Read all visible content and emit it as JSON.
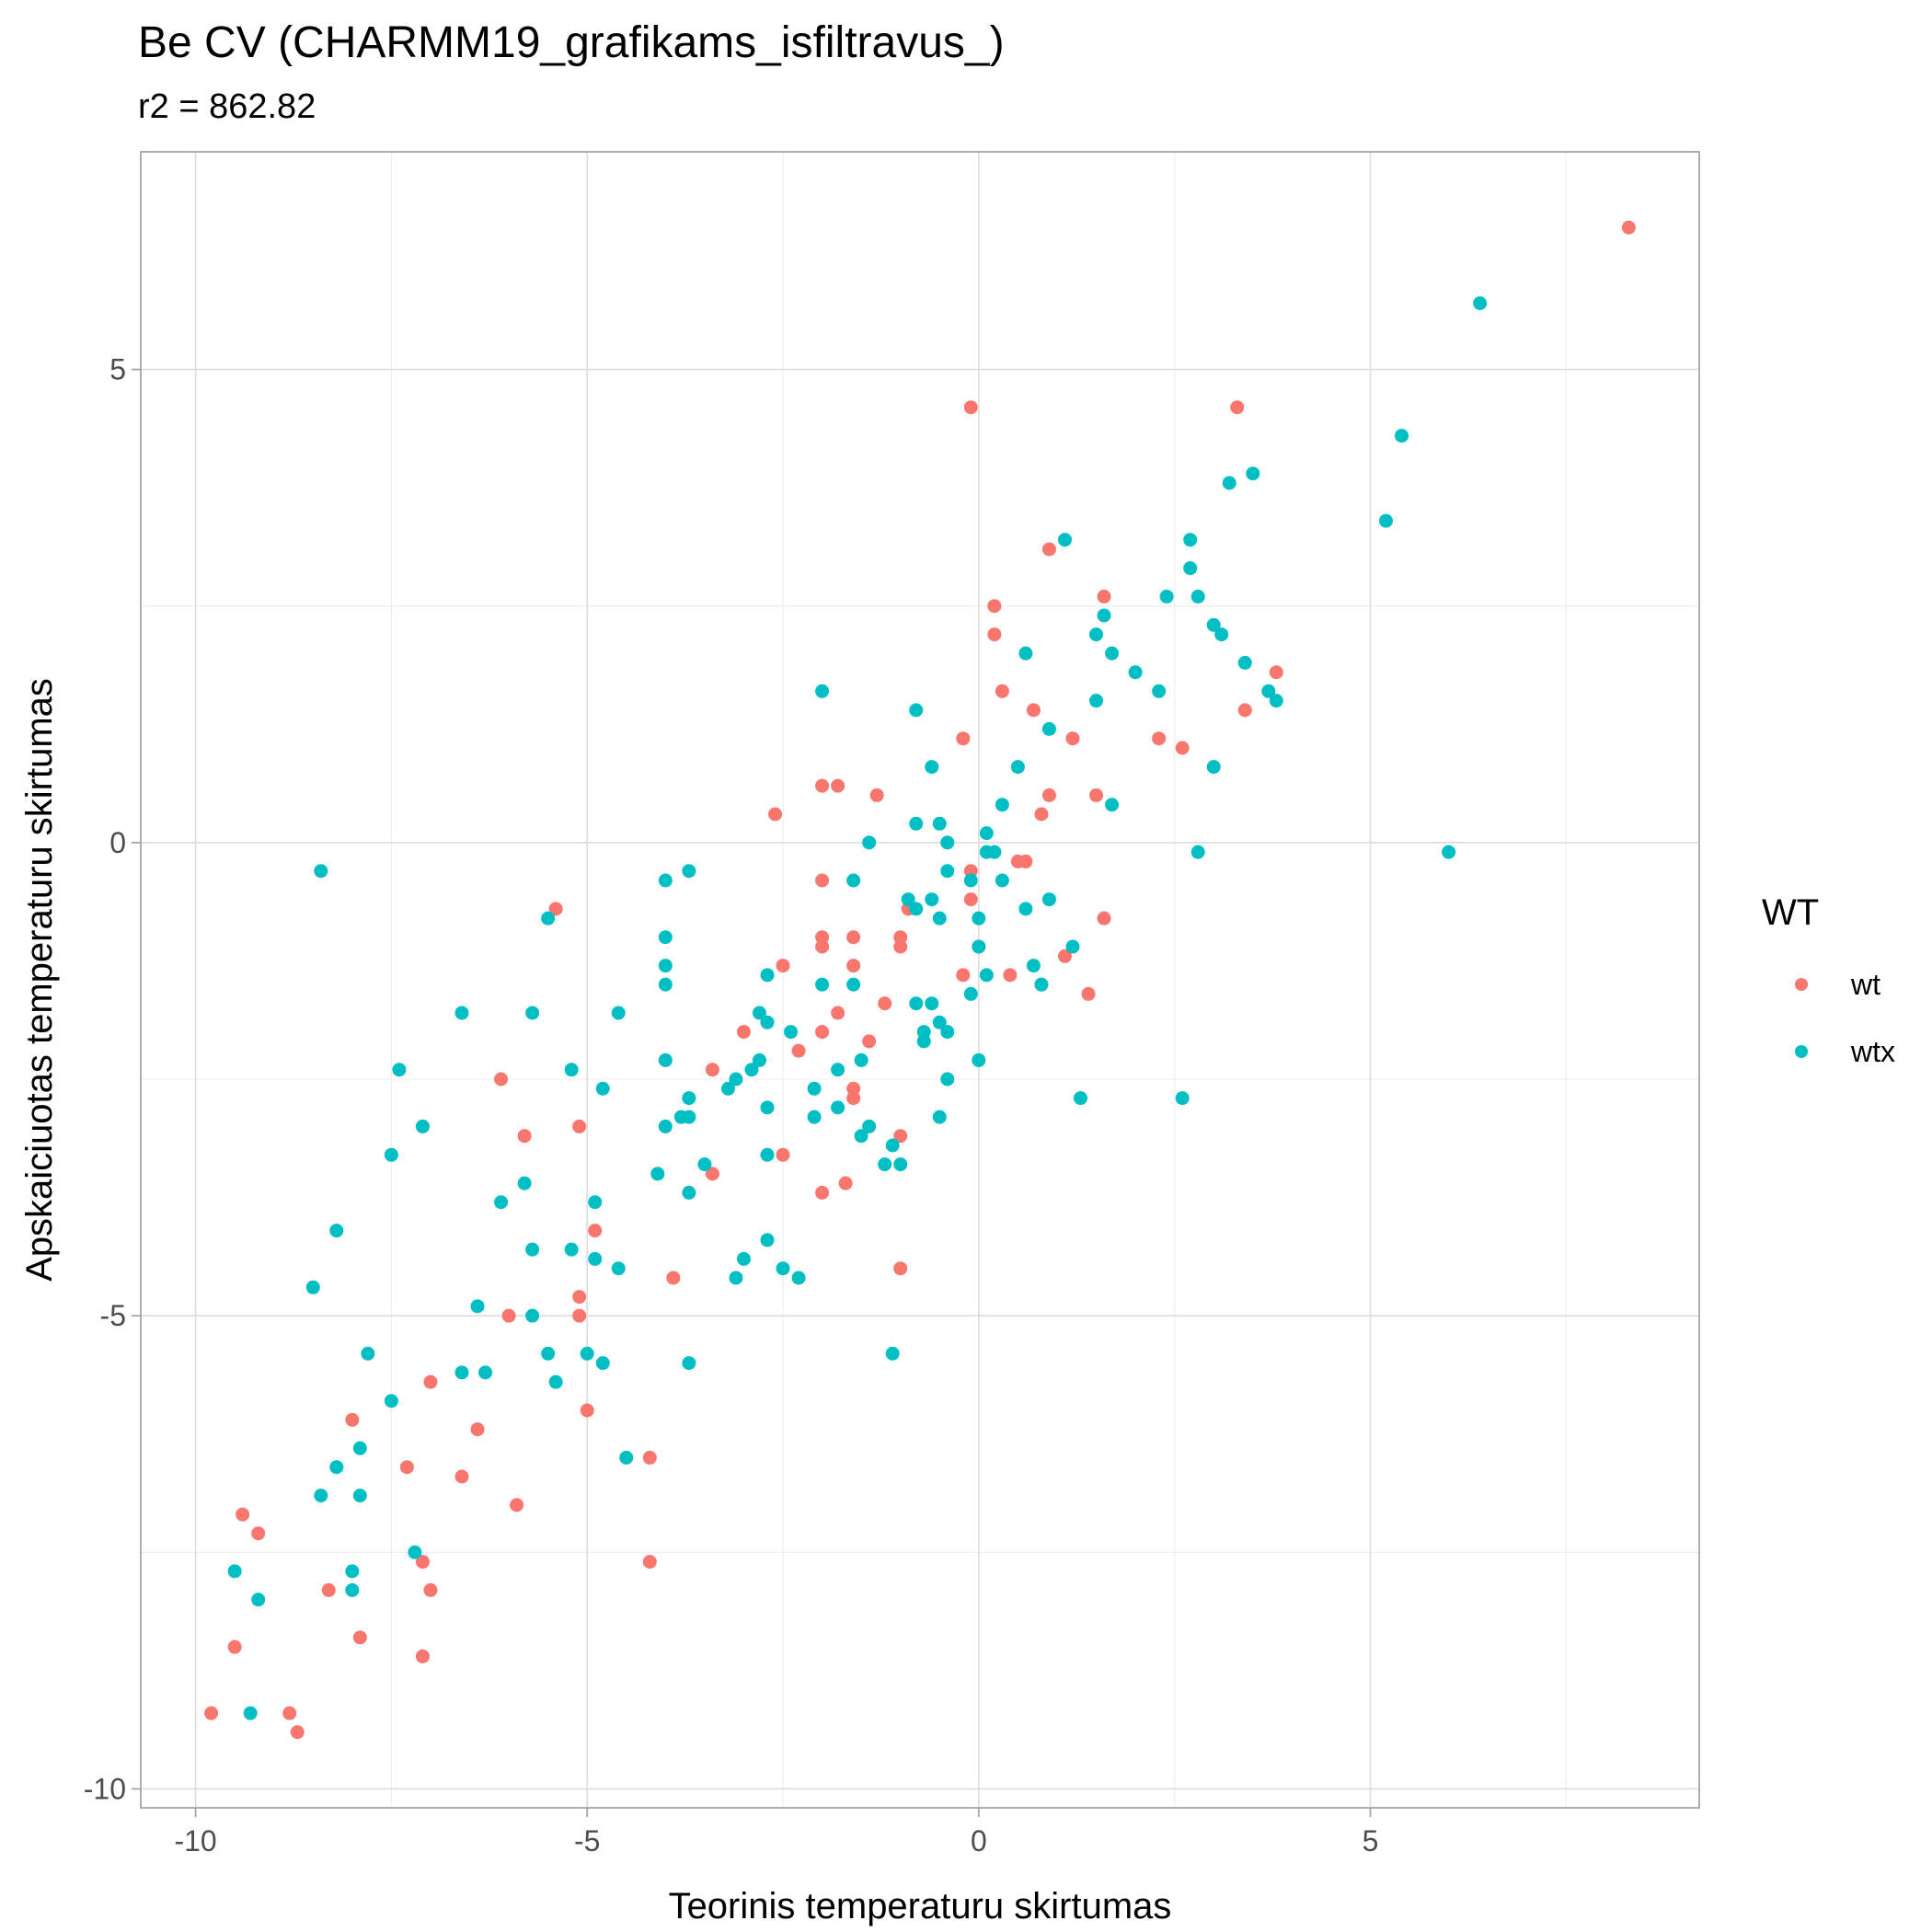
{
  "chart_data": {
    "type": "scatter",
    "title": "Be CV (CHARMM19_grafikams_isfiltravus_)",
    "subtitle": "r2 = 862.82",
    "xlabel": "Teorinis temperaturu skirtumas",
    "ylabel": "Apskaiciuotas temperaturu skirtumas",
    "xlim": [
      -10.7,
      9.2
    ],
    "ylim": [
      -10.2,
      7.3
    ],
    "x_ticks": [
      -10,
      -5,
      0,
      5
    ],
    "y_ticks": [
      -10,
      -5,
      0,
      5
    ],
    "x_tick_labels": [
      "-10",
      "-5",
      "0",
      "5"
    ],
    "y_tick_labels": [
      "-10",
      "-5",
      "0",
      "5"
    ],
    "grid": true,
    "legend": {
      "title": "WT",
      "position": "right"
    },
    "series": [
      {
        "name": "wt",
        "color": "#F8766D",
        "points": [
          [
            8.3,
            6.5
          ],
          [
            -0.1,
            4.6
          ],
          [
            3.3,
            4.6
          ],
          [
            0.9,
            3.1
          ],
          [
            1.6,
            2.6
          ],
          [
            0.2,
            2.5
          ],
          [
            0.2,
            2.2
          ],
          [
            3.8,
            1.8
          ],
          [
            0.3,
            1.6
          ],
          [
            0.7,
            1.4
          ],
          [
            3.4,
            1.4
          ],
          [
            2.3,
            1.1
          ],
          [
            -0.2,
            1.1
          ],
          [
            1.2,
            1.1
          ],
          [
            2.6,
            1.0
          ],
          [
            -2.0,
            0.6
          ],
          [
            -1.8,
            0.6
          ],
          [
            0.9,
            0.5
          ],
          [
            1.5,
            0.5
          ],
          [
            -1.3,
            0.5
          ],
          [
            -2.6,
            0.3
          ],
          [
            0.8,
            0.3
          ],
          [
            0.5,
            -0.2
          ],
          [
            0.6,
            -0.2
          ],
          [
            -0.1,
            -0.3
          ],
          [
            -2.0,
            -0.4
          ],
          [
            -0.1,
            -0.6
          ],
          [
            -5.4,
            -0.7
          ],
          [
            -0.9,
            -0.7
          ],
          [
            1.6,
            -0.8
          ],
          [
            -2.0,
            -1.0
          ],
          [
            -1.6,
            -1.0
          ],
          [
            -1.0,
            -1.0
          ],
          [
            -2.0,
            -1.1
          ],
          [
            -1.0,
            -1.1
          ],
          [
            0.0,
            -1.1
          ],
          [
            1.1,
            -1.2
          ],
          [
            -2.5,
            -1.3
          ],
          [
            -1.6,
            -1.3
          ],
          [
            -0.2,
            -1.4
          ],
          [
            0.4,
            -1.4
          ],
          [
            0.8,
            -1.5
          ],
          [
            1.4,
            -1.6
          ],
          [
            -1.2,
            -1.7
          ],
          [
            -1.8,
            -1.8
          ],
          [
            -3.0,
            -2.0
          ],
          [
            -2.0,
            -2.0
          ],
          [
            -1.4,
            -2.1
          ],
          [
            -2.3,
            -2.2
          ],
          [
            -3.4,
            -2.4
          ],
          [
            -6.1,
            -2.5
          ],
          [
            -1.6,
            -2.6
          ],
          [
            -1.6,
            -2.7
          ],
          [
            -5.1,
            -3.0
          ],
          [
            -5.8,
            -3.1
          ],
          [
            -1.0,
            -3.1
          ],
          [
            -2.5,
            -3.3
          ],
          [
            -3.4,
            -3.5
          ],
          [
            -1.7,
            -3.6
          ],
          [
            -2.0,
            -3.7
          ],
          [
            -4.9,
            -4.1
          ],
          [
            -1.0,
            -4.5
          ],
          [
            -3.9,
            -4.6
          ],
          [
            -5.1,
            -4.8
          ],
          [
            -6.0,
            -5.0
          ],
          [
            -5.1,
            -5.0
          ],
          [
            -7.0,
            -5.7
          ],
          [
            -8.0,
            -6.1
          ],
          [
            -5.0,
            -6.0
          ],
          [
            -6.4,
            -6.2
          ],
          [
            -4.2,
            -6.5
          ],
          [
            -7.3,
            -6.6
          ],
          [
            -6.6,
            -6.7
          ],
          [
            -5.9,
            -7.0
          ],
          [
            -9.4,
            -7.1
          ],
          [
            -9.2,
            -7.3
          ],
          [
            -7.1,
            -7.6
          ],
          [
            -4.2,
            -7.6
          ],
          [
            -7.0,
            -7.9
          ],
          [
            -8.3,
            -7.9
          ],
          [
            -7.9,
            -8.4
          ],
          [
            -9.5,
            -8.5
          ],
          [
            -7.1,
            -8.6
          ],
          [
            -9.8,
            -9.2
          ],
          [
            -8.8,
            -9.2
          ],
          [
            -8.7,
            -9.4
          ]
        ]
      },
      {
        "name": "wtx",
        "color": "#00BFC4",
        "points": [
          [
            6.4,
            5.7
          ],
          [
            5.4,
            4.3
          ],
          [
            3.5,
            3.9
          ],
          [
            3.2,
            3.8
          ],
          [
            5.2,
            3.4
          ],
          [
            1.1,
            3.2
          ],
          [
            2.7,
            3.2
          ],
          [
            2.7,
            2.9
          ],
          [
            2.4,
            2.6
          ],
          [
            2.8,
            2.6
          ],
          [
            1.6,
            2.4
          ],
          [
            3.0,
            2.3
          ],
          [
            1.5,
            2.2
          ],
          [
            3.1,
            2.2
          ],
          [
            0.6,
            2.0
          ],
          [
            1.7,
            2.0
          ],
          [
            3.4,
            1.9
          ],
          [
            2.0,
            1.8
          ],
          [
            3.7,
            1.6
          ],
          [
            2.3,
            1.6
          ],
          [
            -2.0,
            1.6
          ],
          [
            1.5,
            1.5
          ],
          [
            3.8,
            1.5
          ],
          [
            -0.8,
            1.4
          ],
          [
            0.9,
            1.2
          ],
          [
            3.0,
            0.8
          ],
          [
            -0.6,
            0.8
          ],
          [
            0.5,
            0.8
          ],
          [
            1.7,
            0.4
          ],
          [
            0.3,
            0.4
          ],
          [
            -0.8,
            0.2
          ],
          [
            -0.5,
            0.2
          ],
          [
            0.1,
            0.1
          ],
          [
            -1.4,
            0.0
          ],
          [
            -0.4,
            0.0
          ],
          [
            0.1,
            -0.1
          ],
          [
            0.2,
            -0.1
          ],
          [
            2.8,
            -0.1
          ],
          [
            6.0,
            -0.1
          ],
          [
            -8.4,
            -0.3
          ],
          [
            -3.7,
            -0.3
          ],
          [
            -0.4,
            -0.3
          ],
          [
            -4.0,
            -0.4
          ],
          [
            -1.6,
            -0.4
          ],
          [
            0.3,
            -0.4
          ],
          [
            -0.1,
            -0.4
          ],
          [
            -0.9,
            -0.6
          ],
          [
            -0.8,
            -0.7
          ],
          [
            -0.6,
            -0.6
          ],
          [
            0.6,
            -0.7
          ],
          [
            0.9,
            -0.6
          ],
          [
            -5.5,
            -0.8
          ],
          [
            -0.5,
            -0.8
          ],
          [
            0.0,
            -0.8
          ],
          [
            -4.0,
            -1.0
          ],
          [
            1.2,
            -1.1
          ],
          [
            0.0,
            -1.1
          ],
          [
            -4.0,
            -1.3
          ],
          [
            0.7,
            -1.3
          ],
          [
            -2.7,
            -1.4
          ],
          [
            0.1,
            -1.4
          ],
          [
            -4.0,
            -1.5
          ],
          [
            -2.0,
            -1.5
          ],
          [
            -1.6,
            -1.5
          ],
          [
            0.8,
            -1.5
          ],
          [
            -0.1,
            -1.6
          ],
          [
            -0.8,
            -1.7
          ],
          [
            -0.6,
            -1.7
          ],
          [
            -4.6,
            -1.8
          ],
          [
            -6.6,
            -1.8
          ],
          [
            -5.7,
            -1.8
          ],
          [
            -2.8,
            -1.8
          ],
          [
            -2.7,
            -1.9
          ],
          [
            -0.5,
            -1.9
          ],
          [
            -0.4,
            -2.0
          ],
          [
            -0.7,
            -2.0
          ],
          [
            -0.7,
            -2.1
          ],
          [
            -2.4,
            -2.0
          ],
          [
            -4.0,
            -2.3
          ],
          [
            -2.9,
            -2.4
          ],
          [
            -2.8,
            -2.3
          ],
          [
            -1.8,
            -2.4
          ],
          [
            -1.5,
            -2.3
          ],
          [
            0.0,
            -2.3
          ],
          [
            -7.4,
            -2.4
          ],
          [
            -5.2,
            -2.4
          ],
          [
            -3.1,
            -2.5
          ],
          [
            -3.2,
            -2.6
          ],
          [
            -4.8,
            -2.6
          ],
          [
            -3.7,
            -2.7
          ],
          [
            -2.1,
            -2.6
          ],
          [
            -0.4,
            -2.5
          ],
          [
            1.3,
            -2.7
          ],
          [
            2.6,
            -2.7
          ],
          [
            -2.7,
            -2.8
          ],
          [
            -1.8,
            -2.8
          ],
          [
            -2.1,
            -2.9
          ],
          [
            -3.8,
            -2.9
          ],
          [
            -3.7,
            -2.9
          ],
          [
            -0.5,
            -2.9
          ],
          [
            -1.4,
            -3.0
          ],
          [
            -1.5,
            -3.1
          ],
          [
            -4.0,
            -3.0
          ],
          [
            -7.1,
            -3.0
          ],
          [
            -1.1,
            -3.2
          ],
          [
            -7.5,
            -3.3
          ],
          [
            -2.7,
            -3.3
          ],
          [
            -1.2,
            -3.4
          ],
          [
            -1.0,
            -3.4
          ],
          [
            -3.5,
            -3.4
          ],
          [
            -4.1,
            -3.5
          ],
          [
            -5.8,
            -3.6
          ],
          [
            -3.7,
            -3.7
          ],
          [
            -6.1,
            -3.8
          ],
          [
            -4.9,
            -3.8
          ],
          [
            -8.2,
            -4.1
          ],
          [
            -2.7,
            -4.2
          ],
          [
            -5.7,
            -4.3
          ],
          [
            -5.2,
            -4.3
          ],
          [
            -4.9,
            -4.4
          ],
          [
            -3.0,
            -4.4
          ],
          [
            -2.5,
            -4.5
          ],
          [
            -4.6,
            -4.5
          ],
          [
            -3.1,
            -4.6
          ],
          [
            -2.3,
            -4.6
          ],
          [
            -8.5,
            -4.7
          ],
          [
            -6.4,
            -4.9
          ],
          [
            -5.7,
            -5.0
          ],
          [
            -5.5,
            -5.4
          ],
          [
            -4.8,
            -5.5
          ],
          [
            -7.8,
            -5.4
          ],
          [
            -5.0,
            -5.4
          ],
          [
            -3.7,
            -5.5
          ],
          [
            -1.1,
            -5.4
          ],
          [
            -6.6,
            -5.6
          ],
          [
            -6.3,
            -5.6
          ],
          [
            -5.4,
            -5.7
          ],
          [
            -7.5,
            -5.9
          ],
          [
            -7.9,
            -6.4
          ],
          [
            -4.5,
            -6.5
          ],
          [
            -8.2,
            -6.6
          ],
          [
            -8.4,
            -6.9
          ],
          [
            -7.9,
            -6.9
          ],
          [
            -7.2,
            -7.5
          ],
          [
            -9.5,
            -7.7
          ],
          [
            -8.0,
            -7.7
          ],
          [
            -8.0,
            -7.9
          ],
          [
            -9.2,
            -8.0
          ],
          [
            -9.3,
            -9.2
          ]
        ]
      }
    ]
  }
}
